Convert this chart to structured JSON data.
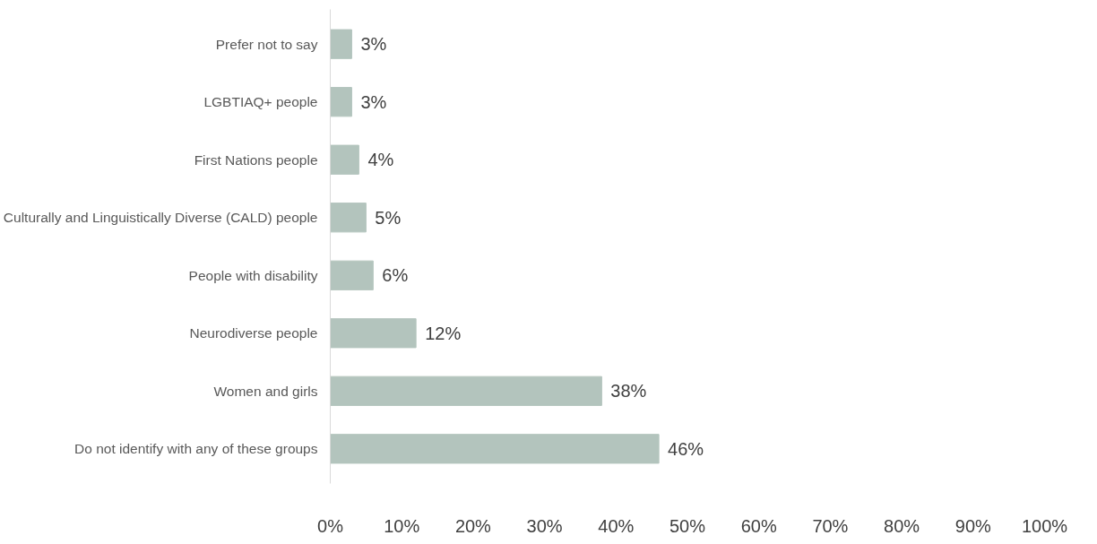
{
  "chart_data": {
    "type": "bar",
    "orientation": "horizontal",
    "categories": [
      "Prefer not to say",
      "LGBTIAQ+ people",
      "First Nations people",
      "Culturally and Linguistically Diverse (CALD) people",
      "People with disability",
      "Neurodiverse people",
      "Women and girls",
      "Do not identify with any of these groups"
    ],
    "values": [
      3,
      3,
      4,
      5,
      6,
      12,
      38,
      46
    ],
    "value_labels": [
      "3%",
      "3%",
      "4%",
      "5%",
      "6%",
      "12%",
      "38%",
      "46%"
    ],
    "color": "#b3c4bd",
    "xlim": [
      0,
      100
    ],
    "xticks": [
      {
        "value": 0,
        "label": "0%"
      },
      {
        "value": 10,
        "label": "10%"
      },
      {
        "value": 20,
        "label": "20%"
      },
      {
        "value": 30,
        "label": "30%"
      },
      {
        "value": 40,
        "label": "40%"
      },
      {
        "value": 50,
        "label": "50%"
      },
      {
        "value": 60,
        "label": "60%"
      },
      {
        "value": 70,
        "label": "70%"
      },
      {
        "value": 80,
        "label": "80%"
      },
      {
        "value": 90,
        "label": "90%"
      },
      {
        "value": 100,
        "label": "100%"
      }
    ],
    "grid": false
  }
}
